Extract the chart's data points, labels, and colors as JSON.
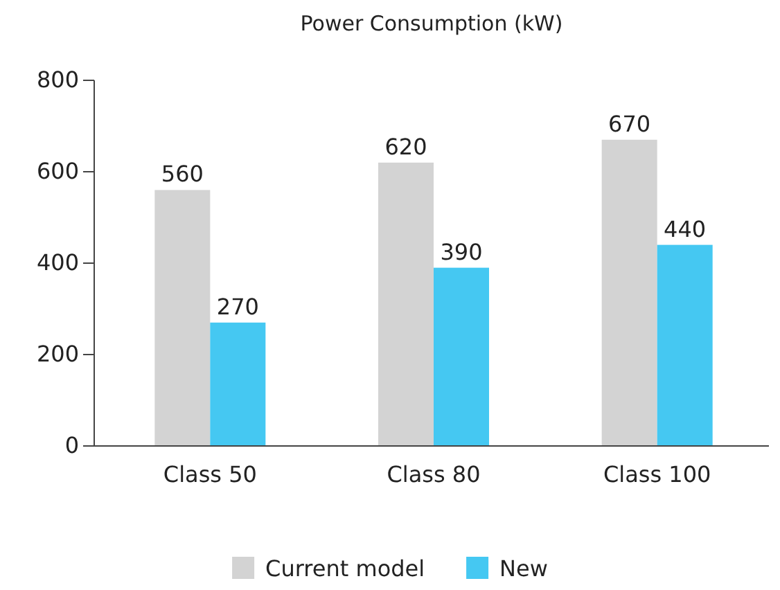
{
  "chart_data": {
    "type": "bar",
    "title": "Power Consumption (kW)",
    "categories": [
      "Class 50",
      "Class 80",
      "Class 100"
    ],
    "series": [
      {
        "name": "Current model",
        "color": "#d3d3d3",
        "values": [
          560,
          620,
          670
        ]
      },
      {
        "name": "New",
        "color": "#45c8f2",
        "values": [
          270,
          390,
          440
        ]
      }
    ],
    "ylim": [
      0,
      800
    ],
    "yticks": [
      0,
      200,
      400,
      600,
      800
    ],
    "data_labels": true,
    "legend": "bottom"
  }
}
